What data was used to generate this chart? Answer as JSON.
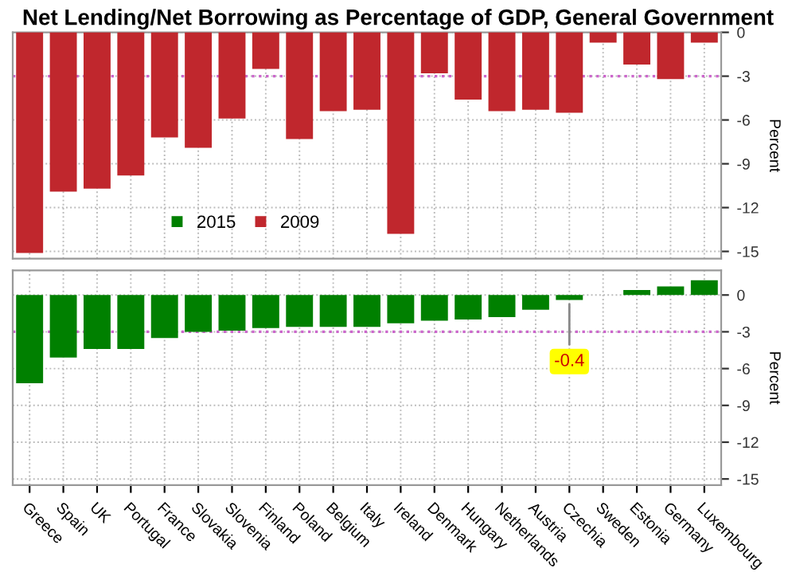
{
  "chart_data": [
    {
      "type": "bar",
      "title": "Net Lending/Net Borrowing as Percentage of GDP, General Government",
      "ylabel": "Percent",
      "series": [
        {
          "name": "2009",
          "color": "#c0272d",
          "values": [
            -15.1,
            -10.9,
            -10.7,
            -9.8,
            -7.2,
            -7.9,
            -5.9,
            -2.5,
            -7.3,
            -5.4,
            -5.3,
            -13.8,
            -2.8,
            -4.6,
            -5.4,
            -5.3,
            -5.5,
            -0.7,
            -2.2,
            -3.2,
            -0.7
          ]
        }
      ],
      "ylim": [
        -15.5,
        0
      ],
      "yticks": [
        0,
        -3,
        -6,
        -9,
        -12,
        -15
      ],
      "grid": true,
      "legend": "bottom",
      "tick_labels": "y",
      "ref_lines": [
        {
          "axis": "y",
          "value": -3,
          "color": "#cc66cc",
          "line_style": "dotted"
        }
      ]
    },
    {
      "type": "bar",
      "ylabel": "Percent",
      "categories": [
        "Greece",
        "Spain",
        "UK",
        "Portugal",
        "France",
        "Slovakia",
        "Slovenia",
        "Finland",
        "Poland",
        "Belgium",
        "Italy",
        "Ireland",
        "Denmark",
        "Hungary",
        "Netherlands",
        "Austria",
        "Czechia",
        "Sweden",
        "Estonia",
        "Germany",
        "Luxembourg"
      ],
      "series": [
        {
          "name": "2015",
          "color": "#008000",
          "values": [
            -7.2,
            -5.1,
            -4.4,
            -4.4,
            -3.5,
            -3.0,
            -2.9,
            -2.7,
            -2.6,
            -2.6,
            -2.6,
            -2.3,
            -2.1,
            -2.0,
            -1.8,
            -1.2,
            -0.4,
            0,
            0.4,
            0.7,
            1.2
          ]
        }
      ],
      "ylim": [
        -15.5,
        2
      ],
      "yticks": [
        0,
        -3,
        -6,
        -9,
        -12,
        -15
      ],
      "grid": true,
      "ref_lines": [
        {
          "axis": "y",
          "value": -3,
          "color": "#cc66cc",
          "line_style": "dotted"
        }
      ],
      "annotations": [
        {
          "text": "-0.4",
          "x": "Czechia",
          "y": -0.4
        }
      ]
    }
  ]
}
